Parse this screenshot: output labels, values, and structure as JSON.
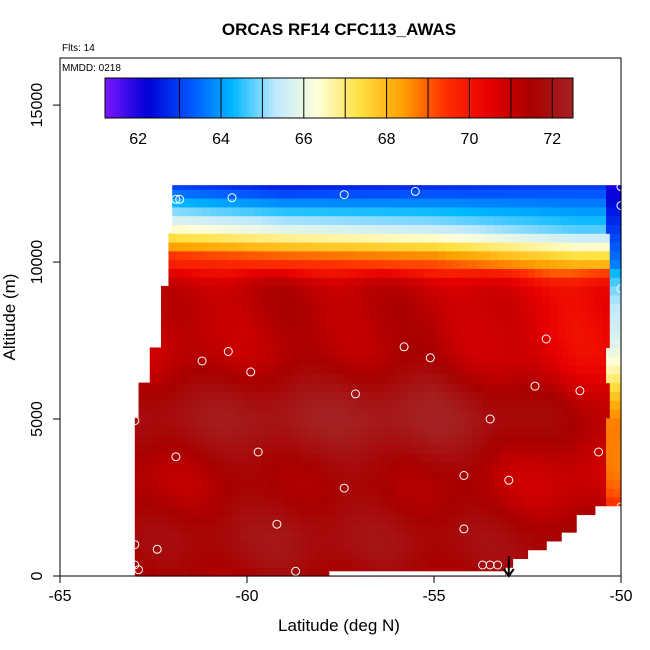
{
  "chart_data": {
    "type": "heatmap",
    "title": "ORCAS RF14 CFC113_AWAS",
    "annotations": [
      "Flts: 14",
      "MMDD: 0218"
    ],
    "xlabel": "Latitude (deg N)",
    "ylabel": "Altitude (m)",
    "xlim": [
      -65,
      -50
    ],
    "ylim": [
      0,
      16500
    ],
    "xticks": [
      -65,
      -60,
      -55,
      -50
    ],
    "yticks": [
      0,
      5000,
      10000,
      15000
    ],
    "colorbar": {
      "range": [
        61.2,
        72.5
      ],
      "ticks": [
        62,
        64,
        66,
        68,
        70,
        72
      ],
      "colors": [
        "#7b17ff",
        "#0000d8",
        "#0054ff",
        "#00b7ff",
        "#bfe9ff",
        "#ffffd8",
        "#ffe040",
        "#ffa000",
        "#ff3000",
        "#e80000",
        "#a80000",
        "#a52020"
      ]
    },
    "field": {
      "value_rows_bottom_to_top": [
        {
          "alt": 0,
          "values": [
            71.2,
            71.6,
            71.4,
            71.6
          ]
        },
        {
          "alt": 2000,
          "values": [
            71.4,
            71.8,
            71.6,
            71.2
          ]
        },
        {
          "alt": 5000,
          "values": [
            71.6,
            72.0,
            72.2,
            71.0
          ]
        },
        {
          "alt": 7500,
          "values": [
            71.2,
            71.5,
            71.6,
            70.6
          ]
        },
        {
          "alt": 9300,
          "values": [
            70.5,
            70.8,
            70.6,
            69.8
          ]
        },
        {
          "alt": 10200,
          "values": [
            69.6,
            69.0,
            68.6,
            67.4
          ]
        },
        {
          "alt": 11000,
          "values": [
            66.8,
            66.0,
            65.6,
            64.8
          ]
        },
        {
          "alt": 12400,
          "values": [
            63.2,
            62.6,
            62.8,
            63.0
          ]
        }
      ],
      "lat_points": [
        -63.0,
        -59.0,
        -55.0,
        -51.2
      ],
      "right_edge_column": {
        "lat_range": [
          -50.3,
          -50.0
        ],
        "values": [
          70.5,
          68.5,
          64.0,
          62.0
        ]
      }
    },
    "samples": [
      {
        "lat": -50.0,
        "alt": 12400
      },
      {
        "lat": -61.9,
        "alt": 12000
      },
      {
        "lat": -61.8,
        "alt": 12000
      },
      {
        "lat": -60.4,
        "alt": 12050
      },
      {
        "lat": -57.4,
        "alt": 12150
      },
      {
        "lat": -55.5,
        "alt": 12250
      },
      {
        "lat": -50.0,
        "alt": 11800
      },
      {
        "lat": -50.0,
        "alt": 9150
      },
      {
        "lat": -62.5,
        "alt": 8850
      },
      {
        "lat": -52.0,
        "alt": 7550
      },
      {
        "lat": -55.8,
        "alt": 7300
      },
      {
        "lat": -55.1,
        "alt": 6950
      },
      {
        "lat": -60.5,
        "alt": 7150
      },
      {
        "lat": -61.2,
        "alt": 6850
      },
      {
        "lat": -59.9,
        "alt": 6500
      },
      {
        "lat": -52.3,
        "alt": 6050
      },
      {
        "lat": -51.1,
        "alt": 5900
      },
      {
        "lat": -57.1,
        "alt": 5800
      },
      {
        "lat": -53.5,
        "alt": 5000
      },
      {
        "lat": -63.0,
        "alt": 4950
      },
      {
        "lat": -61.9,
        "alt": 3800
      },
      {
        "lat": -59.7,
        "alt": 3950
      },
      {
        "lat": -50.6,
        "alt": 3950
      },
      {
        "lat": -54.2,
        "alt": 3200
      },
      {
        "lat": -53.0,
        "alt": 3050
      },
      {
        "lat": -57.4,
        "alt": 2800
      },
      {
        "lat": -50.0,
        "alt": 2200
      },
      {
        "lat": -59.2,
        "alt": 1650
      },
      {
        "lat": -54.2,
        "alt": 1500
      },
      {
        "lat": -63.0,
        "alt": 1000
      },
      {
        "lat": -62.4,
        "alt": 850
      },
      {
        "lat": -63.0,
        "alt": 350
      },
      {
        "lat": -62.9,
        "alt": 200
      },
      {
        "lat": -53.7,
        "alt": 350
      },
      {
        "lat": -53.5,
        "alt": 350
      },
      {
        "lat": -53.3,
        "alt": 350
      },
      {
        "lat": -58.7,
        "alt": 150
      }
    ],
    "marker": {
      "lat": -53.0,
      "symbol": "down-arrow"
    }
  }
}
